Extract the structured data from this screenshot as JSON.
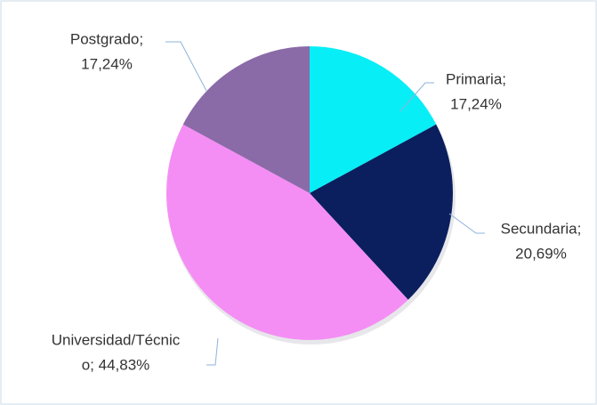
{
  "chart_data": {
    "type": "pie",
    "values": [
      17.24,
      20.69,
      44.83,
      17.24
    ],
    "colors": [
      "#08eef6",
      "#0b1f5e",
      "#f48ef4",
      "#8b6aa8"
    ],
    "labels": [
      [
        "Primaria;",
        "17,24%"
      ],
      [
        "Secundaria;",
        "20,69%"
      ],
      [
        "Universidad/Técnic",
        "o; 44,83%"
      ],
      [
        "Postgrado;",
        "17,24%"
      ]
    ]
  }
}
